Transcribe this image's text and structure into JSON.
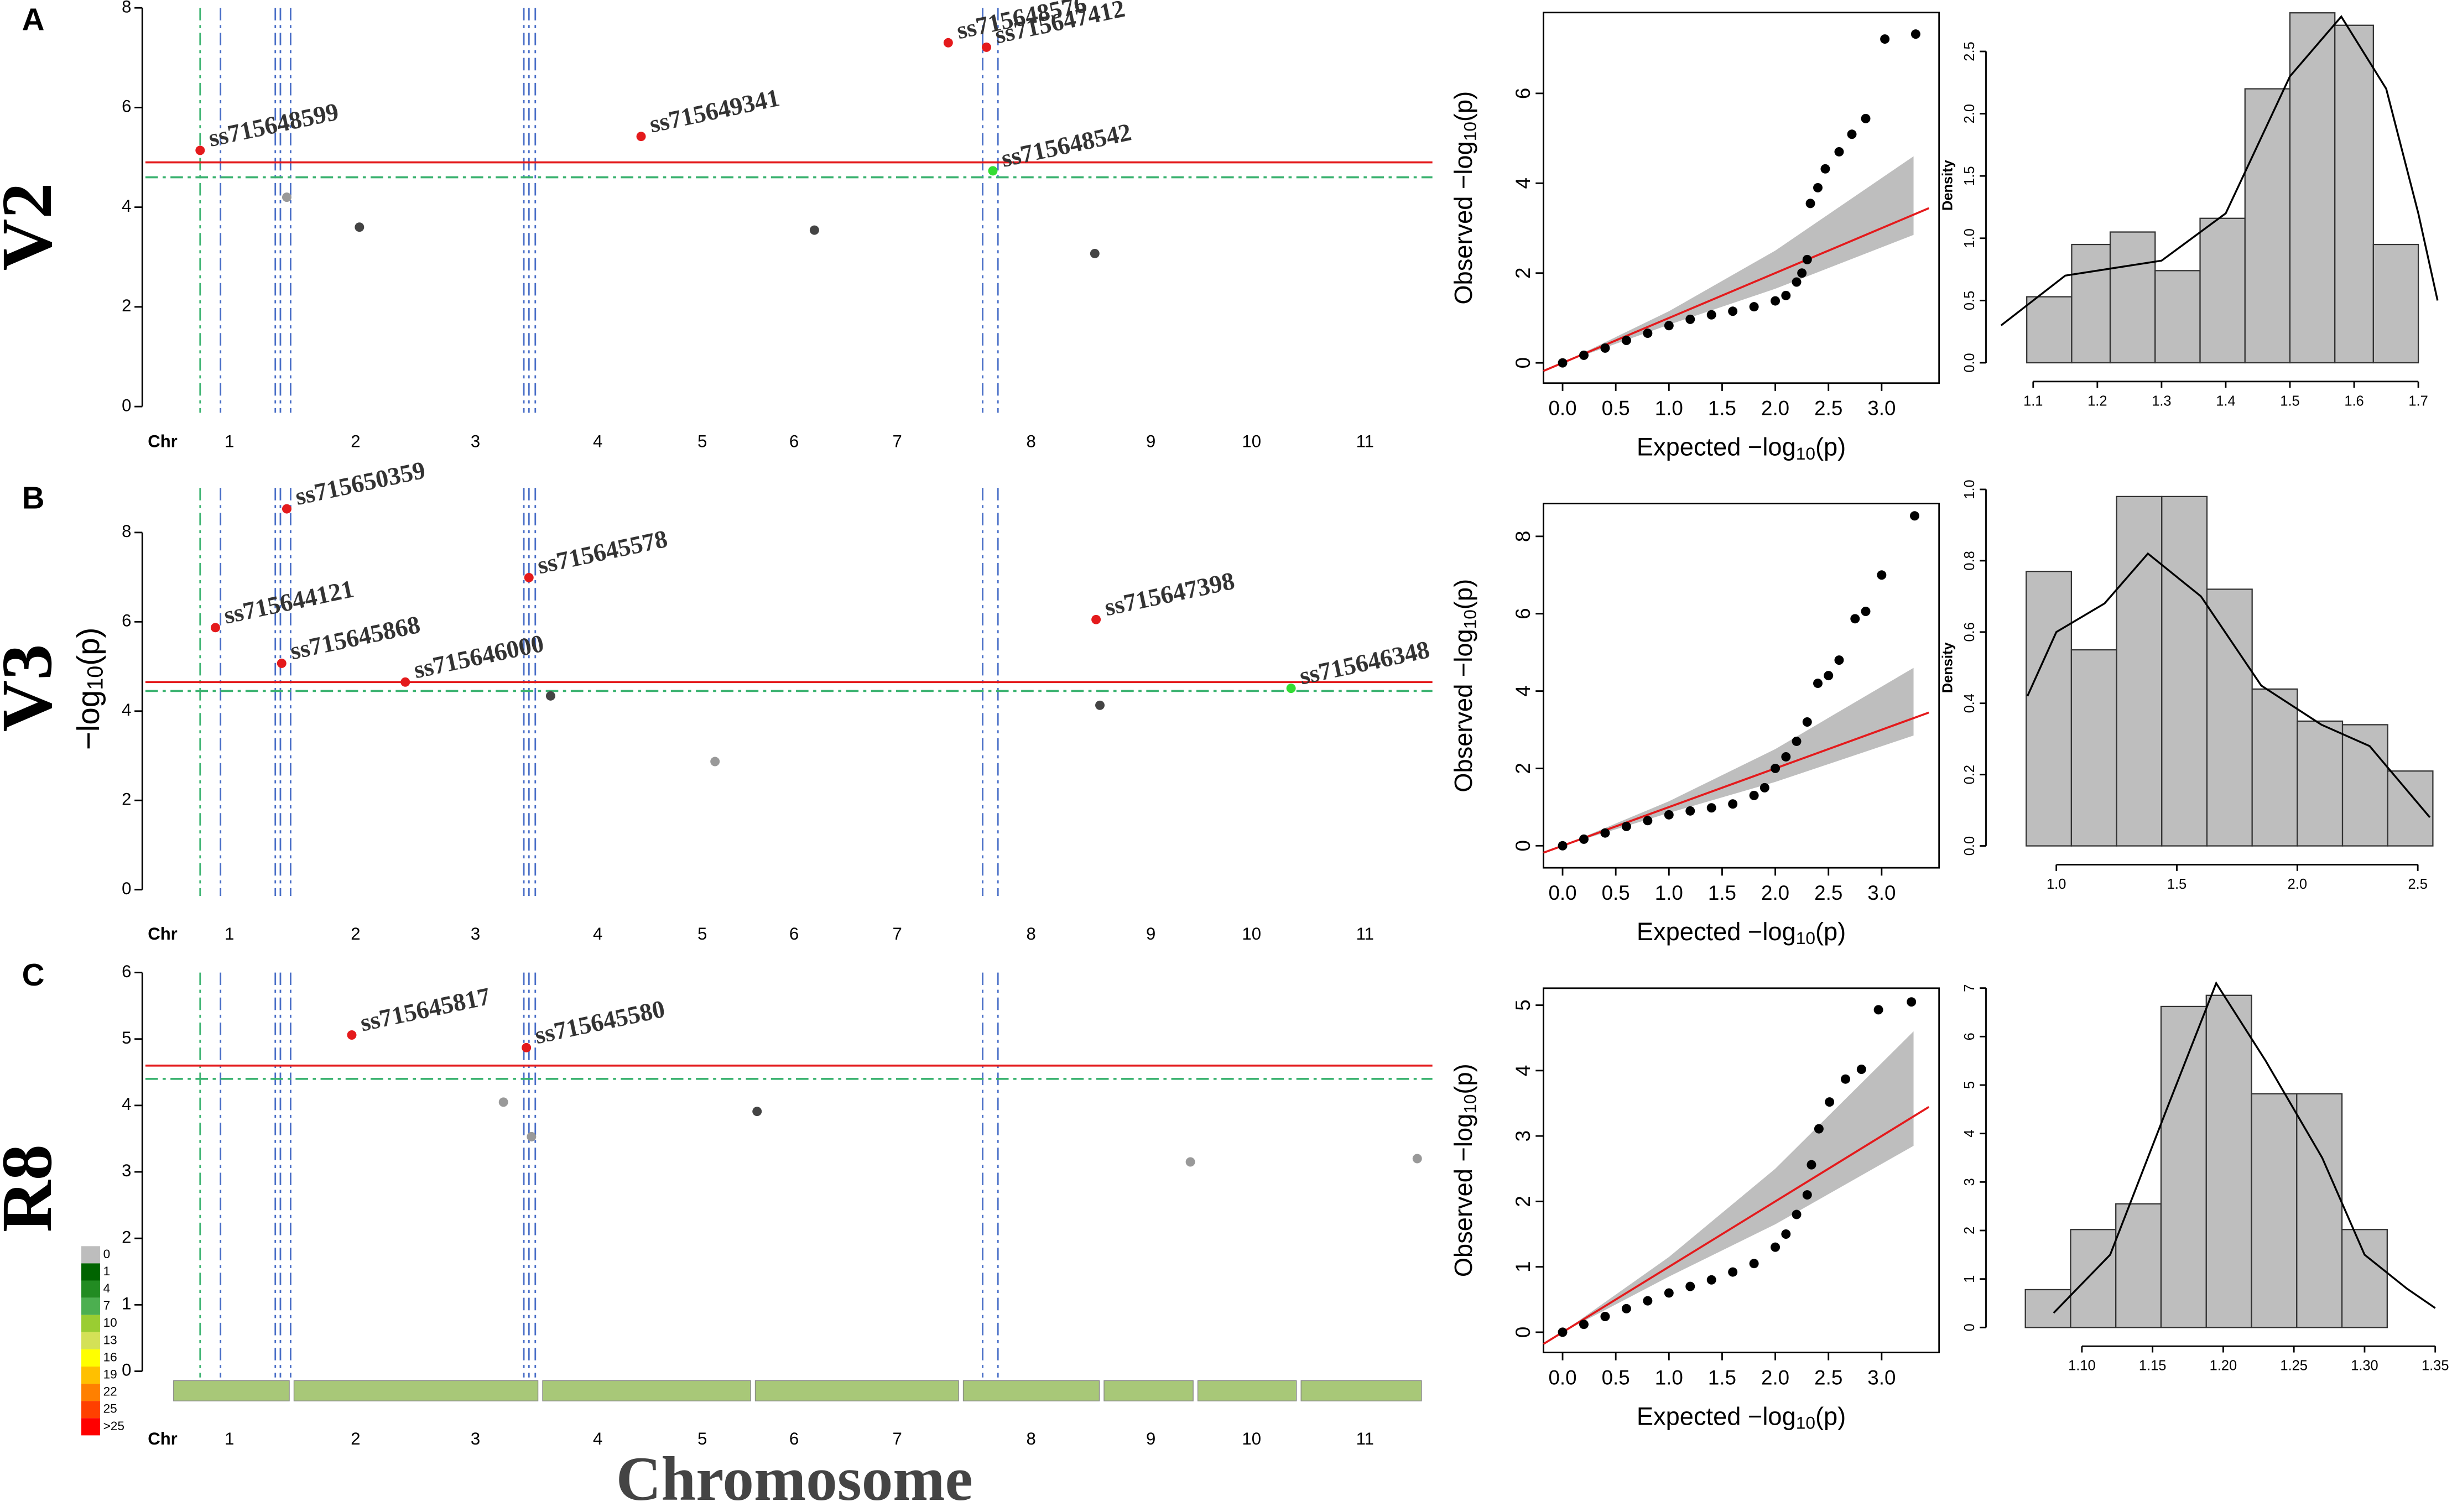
{
  "figure": {
    "panels": [
      {
        "letter": "A",
        "trait": "V2"
      },
      {
        "letter": "B",
        "trait": "V3"
      },
      {
        "letter": "C",
        "trait": "R8"
      }
    ],
    "xlabel": "Chromosome",
    "density_legend": {
      "labels": [
        0,
        1,
        4,
        7,
        10,
        13,
        16,
        19,
        22,
        25,
        ">25"
      ],
      "colors": [
        "#bdbdbd",
        "#006400",
        "#228b22",
        "#4caf50",
        "#9acd32",
        "#d4e157",
        "#ffff00",
        "#ffc000",
        "#ff8000",
        "#ff4000",
        "#ff0000"
      ]
    }
  },
  "chart_data": [
    {
      "type": "manhattan",
      "xlabel_prefix": "Chr",
      "xlim": [
        0,
        100
      ],
      "ylim": [
        0,
        8
      ],
      "yticks": [
        0,
        2,
        4,
        6,
        8
      ],
      "xticks": [
        {
          "value": 6.1,
          "label": "1"
        },
        {
          "value": 16.0,
          "label": "2"
        },
        {
          "value": 25.4,
          "label": "3"
        },
        {
          "value": 35.0,
          "label": "4"
        },
        {
          "value": 43.2,
          "label": "5"
        },
        {
          "value": 50.4,
          "label": "6"
        },
        {
          "value": 58.5,
          "label": "7"
        },
        {
          "value": 69.0,
          "label": "8"
        },
        {
          "value": 78.4,
          "label": "9"
        },
        {
          "value": 86.3,
          "label": "10"
        },
        {
          "value": 95.2,
          "label": "11"
        }
      ],
      "thresholds": [
        {
          "value": 4.9,
          "color": "#e41a1c"
        },
        {
          "value": 4.6,
          "color": "#3cb371"
        }
      ],
      "vlines": {
        "x": [
          3.8,
          5.4,
          9.7,
          10.1,
          10.9,
          29.2,
          29.6,
          30.1,
          65.2,
          66.4
        ],
        "colors": [
          "#3cb371",
          "#4a6fc7",
          "#4a6fc7",
          "#4a6fc7",
          "#4a6fc7",
          "#4a6fc7",
          "#4a6fc7",
          "#4a6fc7",
          "#4a6fc7",
          "#4a6fc7"
        ]
      },
      "points": {
        "x": [
          3.8,
          38.4,
          62.5,
          65.5,
          66.0,
          10.6,
          16.3,
          52.0,
          74.0
        ],
        "y": [
          5.14,
          5.42,
          7.3,
          7.21,
          4.73,
          4.2,
          3.6,
          3.54,
          3.07
        ],
        "labels": [
          "ss715648599",
          "ss715649341",
          "ss715648576",
          "ss715647412",
          "ss715648542",
          null,
          null,
          null,
          null
        ],
        "colors": [
          "#e41a1c",
          "#e41a1c",
          "#e41a1c",
          "#e41a1c",
          "#33dd33",
          "#999999",
          "#444444",
          "#444444",
          "#444444"
        ]
      }
    },
    {
      "type": "qq",
      "xlim": [
        -0.18,
        3.54
      ],
      "ylim": [
        -0.45,
        7.8
      ],
      "xticks": [
        {
          "value": 0,
          "label": "0.0"
        },
        0.5,
        {
          "value": 1,
          "label": "1.0"
        },
        1.5,
        {
          "value": 2,
          "label": "2.0"
        },
        2.5,
        {
          "value": 3,
          "label": "3.0"
        }
      ],
      "yticks": [
        0,
        2,
        4,
        6
      ],
      "xlabel": [
        "Expected  −log",
        "10",
        "(p)"
      ],
      "ylabel": [
        "Observed  −log",
        "10",
        "(p)"
      ],
      "line_color": "#e41a1c",
      "point_color": "#000000",
      "expected": [
        0,
        0.2,
        0.4,
        0.6,
        0.8,
        1.0,
        1.2,
        1.4,
        1.6,
        1.8,
        2.0,
        2.1,
        2.2,
        2.25,
        2.3,
        2.33,
        2.4,
        2.47,
        2.6,
        2.72,
        2.85,
        3.03,
        3.32
      ],
      "observed": [
        0,
        0.17,
        0.33,
        0.5,
        0.66,
        0.83,
        0.97,
        1.07,
        1.15,
        1.25,
        1.38,
        1.5,
        1.8,
        2.0,
        2.3,
        3.55,
        3.9,
        4.32,
        4.7,
        5.09,
        5.44,
        7.21,
        7.32
      ],
      "ci": {
        "x": [
          0,
          1,
          2,
          3.3
        ],
        "upper": [
          0,
          1.15,
          2.5,
          4.6
        ],
        "lower": [
          0,
          0.85,
          1.65,
          2.85
        ],
        "color": "#bebebe"
      }
    },
    {
      "type": "histogram",
      "ylabel": "Density",
      "xlim": [
        1.046,
        1.733
      ],
      "ylim": [
        0,
        2.85
      ],
      "xticks": [
        1.1,
        1.2,
        1.3,
        1.4,
        1.5,
        1.6,
        1.7
      ],
      "yticks": [
        {
          "value": 0,
          "label": "0.0"
        },
        0.5,
        {
          "value": 1,
          "label": "1.0"
        },
        1.5,
        {
          "value": 2,
          "label": "2.0"
        },
        2.5
      ],
      "bins": [
        1.09,
        1.16,
        1.22,
        1.29,
        1.36,
        1.43,
        1.5,
        1.57,
        1.63,
        1.7
      ],
      "values": [
        0.53,
        0.95,
        1.05,
        0.74,
        1.16,
        2.2,
        2.81,
        2.71,
        0.95
      ],
      "color": "#bebebe",
      "density_curve": {
        "x": [
          1.05,
          1.15,
          1.3,
          1.4,
          1.5,
          1.58,
          1.65,
          1.7,
          1.73
        ],
        "y": [
          0.3,
          0.7,
          0.82,
          1.2,
          2.3,
          2.78,
          2.2,
          1.2,
          0.5
        ]
      }
    },
    {
      "type": "manhattan",
      "xlabel_prefix": "Chr",
      "ylabel": [
        "−log",
        "10",
        "(p)"
      ],
      "xlim": [
        0,
        100
      ],
      "ylim": [
        0,
        9
      ],
      "yticks": [
        0,
        2,
        4,
        6,
        8
      ],
      "xticks": [
        {
          "value": 6.1,
          "label": "1"
        },
        {
          "value": 16.0,
          "label": "2"
        },
        {
          "value": 25.4,
          "label": "3"
        },
        {
          "value": 35.0,
          "label": "4"
        },
        {
          "value": 43.2,
          "label": "5"
        },
        {
          "value": 50.4,
          "label": "6"
        },
        {
          "value": 58.5,
          "label": "7"
        },
        {
          "value": 69.0,
          "label": "8"
        },
        {
          "value": 78.4,
          "label": "9"
        },
        {
          "value": 86.3,
          "label": "10"
        },
        {
          "value": 95.2,
          "label": "11"
        }
      ],
      "thresholds": [
        {
          "value": 4.65,
          "color": "#e41a1c"
        },
        {
          "value": 4.45,
          "color": "#3cb371"
        }
      ],
      "vlines": {
        "x": [
          3.8,
          5.4,
          9.7,
          10.1,
          10.9,
          29.2,
          29.6,
          30.1,
          65.2,
          66.4
        ],
        "colors": [
          "#3cb371",
          "#4a6fc7",
          "#4a6fc7",
          "#4a6fc7",
          "#4a6fc7",
          "#4a6fc7",
          "#4a6fc7",
          "#4a6fc7",
          "#4a6fc7",
          "#4a6fc7"
        ]
      },
      "points": {
        "x": [
          10.6,
          5.0,
          10.2,
          19.9,
          29.6,
          74.1,
          89.4,
          31.3,
          74.4,
          44.2
        ],
        "y": [
          8.53,
          5.87,
          5.07,
          4.65,
          6.99,
          6.05,
          4.51,
          4.34,
          4.13,
          2.87
        ],
        "labels": [
          "ss715650359",
          "ss715644121",
          "ss715645868",
          "ss715646000",
          "ss715645578",
          "ss715647398",
          "ss715646348",
          null,
          null,
          null
        ],
        "colors": [
          "#e41a1c",
          "#e41a1c",
          "#e41a1c",
          "#e41a1c",
          "#e41a1c",
          "#e41a1c",
          "#33dd33",
          "#444444",
          "#444444",
          "#999999"
        ]
      }
    },
    {
      "type": "qq",
      "xlim": [
        -0.18,
        3.54
      ],
      "ylim": [
        -0.57,
        8.85
      ],
      "xticks": [
        {
          "value": 0,
          "label": "0.0"
        },
        0.5,
        {
          "value": 1,
          "label": "1.0"
        },
        1.5,
        {
          "value": 2,
          "label": "2.0"
        },
        2.5,
        {
          "value": 3,
          "label": "3.0"
        }
      ],
      "yticks": [
        0,
        2,
        4,
        6,
        8
      ],
      "xlabel": [
        "Expected  −log",
        "10",
        "(p)"
      ],
      "ylabel": [
        "Observed  −log",
        "10",
        "(p)"
      ],
      "line_color": "#e41a1c",
      "point_color": "#000000",
      "expected": [
        0,
        0.2,
        0.4,
        0.6,
        0.8,
        1.0,
        1.2,
        1.4,
        1.6,
        1.8,
        1.9,
        2.0,
        2.1,
        2.2,
        2.3,
        2.4,
        2.5,
        2.6,
        2.75,
        2.85,
        3.0,
        3.31
      ],
      "observed": [
        0,
        0.17,
        0.33,
        0.5,
        0.65,
        0.8,
        0.9,
        0.98,
        1.08,
        1.3,
        1.5,
        2.0,
        2.3,
        2.7,
        3.2,
        4.2,
        4.4,
        4.8,
        5.87,
        6.06,
        7.0,
        8.53
      ],
      "ci": {
        "x": [
          0,
          1,
          2,
          3.3
        ],
        "upper": [
          0,
          1.15,
          2.5,
          4.6
        ],
        "lower": [
          0,
          0.85,
          1.65,
          2.85
        ],
        "color": "#bebebe"
      }
    },
    {
      "type": "histogram",
      "ylabel": "Density",
      "xlim": [
        0.76,
        2.59
      ],
      "ylim": [
        0,
        1.0
      ],
      "xticks": [
        {
          "value": 1,
          "label": "1.0"
        },
        1.5,
        {
          "value": 2,
          "label": "2.0"
        },
        2.5
      ],
      "yticks": [
        {
          "value": 0,
          "label": "0.0"
        },
        0.2,
        0.4,
        0.6,
        0.8,
        {
          "value": 1,
          "label": "1.0"
        }
      ],
      "bins": [
        0.875,
        1.0625,
        1.25,
        1.4375,
        1.625,
        1.8125,
        2.0,
        2.1875,
        2.375,
        2.5625
      ],
      "values": [
        0.77,
        0.55,
        0.98,
        0.98,
        0.72,
        0.44,
        0.35,
        0.34,
        0.21
      ],
      "color": "#bebebe",
      "density_curve": {
        "x": [
          0.88,
          1.0,
          1.2,
          1.38,
          1.6,
          1.85,
          2.1,
          2.3,
          2.55
        ],
        "y": [
          0.42,
          0.6,
          0.68,
          0.82,
          0.7,
          0.45,
          0.34,
          0.28,
          0.08
        ]
      }
    },
    {
      "type": "manhattan",
      "xlabel_prefix": "Chr",
      "density_bar": true,
      "xlim": [
        0,
        100
      ],
      "ylim": [
        0,
        6
      ],
      "yticks": [
        0,
        1,
        2,
        3,
        4,
        5,
        6
      ],
      "xticks": [
        {
          "value": 6.1,
          "label": "1"
        },
        {
          "value": 16.0,
          "label": "2"
        },
        {
          "value": 25.4,
          "label": "3"
        },
        {
          "value": 35.0,
          "label": "4"
        },
        {
          "value": 43.2,
          "label": "5"
        },
        {
          "value": 50.4,
          "label": "6"
        },
        {
          "value": 58.5,
          "label": "7"
        },
        {
          "value": 69.0,
          "label": "8"
        },
        {
          "value": 78.4,
          "label": "9"
        },
        {
          "value": 86.3,
          "label": "10"
        },
        {
          "value": 95.2,
          "label": "11"
        }
      ],
      "thresholds": [
        {
          "value": 4.6,
          "color": "#e41a1c"
        },
        {
          "value": 4.4,
          "color": "#3cb371"
        }
      ],
      "vlines": {
        "x": [
          3.8,
          5.4,
          9.7,
          10.1,
          10.9,
          29.2,
          29.6,
          30.1,
          65.2,
          66.4
        ],
        "colors": [
          "#3cb371",
          "#4a6fc7",
          "#4a6fc7",
          "#4a6fc7",
          "#4a6fc7",
          "#4a6fc7",
          "#4a6fc7",
          "#4a6fc7",
          "#4a6fc7",
          "#4a6fc7"
        ]
      },
      "points": {
        "x": [
          15.7,
          29.4,
          27.6,
          47.5,
          29.8,
          99.3,
          81.5
        ],
        "y": [
          5.06,
          4.87,
          4.05,
          3.91,
          3.53,
          3.2,
          3.15
        ],
        "labels": [
          "ss715645817",
          "ss715645580",
          null,
          null,
          null,
          null,
          null
        ],
        "colors": [
          "#e41a1c",
          "#e41a1c",
          "#999999",
          "#444444",
          "#999999",
          "#999999",
          "#999999"
        ]
      }
    },
    {
      "type": "qq",
      "xlim": [
        -0.18,
        3.54
      ],
      "ylim": [
        -0.31,
        5.26
      ],
      "xticks": [
        {
          "value": 0,
          "label": "0.0"
        },
        0.5,
        {
          "value": 1,
          "label": "1.0"
        },
        1.5,
        {
          "value": 2,
          "label": "2.0"
        },
        2.5,
        {
          "value": 3,
          "label": "3.0"
        }
      ],
      "yticks": [
        0,
        1,
        2,
        3,
        4,
        5
      ],
      "xlabel": [
        "Expected  −log",
        "10",
        "(p)"
      ],
      "ylabel": [
        "Observed  −log",
        "10",
        "(p)"
      ],
      "line_color": "#e41a1c",
      "point_color": "#000000",
      "expected": [
        0,
        0.2,
        0.4,
        0.6,
        0.8,
        1.0,
        1.2,
        1.4,
        1.6,
        1.8,
        2.0,
        2.1,
        2.2,
        2.3,
        2.34,
        2.41,
        2.51,
        2.66,
        2.81,
        2.97,
        3.28
      ],
      "observed": [
        0,
        0.12,
        0.24,
        0.36,
        0.48,
        0.6,
        0.7,
        0.8,
        0.92,
        1.05,
        1.3,
        1.5,
        1.8,
        2.1,
        2.56,
        3.11,
        3.52,
        3.87,
        4.02,
        4.93,
        5.05
      ],
      "ci": {
        "x": [
          0,
          1,
          2,
          3.3
        ],
        "upper": [
          0,
          1.15,
          2.5,
          4.6
        ],
        "lower": [
          0,
          0.85,
          1.65,
          2.85
        ],
        "color": "#bebebe"
      }
    },
    {
      "type": "histogram",
      "xlim": [
        1.041,
        1.353
      ],
      "ylim": [
        0,
        7.32
      ],
      "xticks": [
        {
          "value": 1.1,
          "label": "1.10"
        },
        {
          "value": 1.15,
          "label": "1.15"
        },
        {
          "value": 1.2,
          "label": "1.20"
        },
        {
          "value": 1.25,
          "label": "1.25"
        },
        {
          "value": 1.3,
          "label": "1.30"
        },
        {
          "value": 1.35,
          "label": "1.35"
        }
      ],
      "yticks": [
        0,
        1,
        2,
        3,
        4,
        5,
        6,
        7
      ],
      "bins": [
        1.06,
        1.092,
        1.124,
        1.156,
        1.188,
        1.22,
        1.252,
        1.284,
        1.316
      ],
      "values": [
        0.78,
        2.02,
        2.55,
        6.62,
        6.85,
        4.82,
        4.82,
        2.02
      ],
      "color": "#bebebe",
      "density_curve": {
        "x": [
          1.08,
          1.12,
          1.16,
          1.195,
          1.23,
          1.27,
          1.3,
          1.33,
          1.35
        ],
        "y": [
          0.3,
          1.5,
          4.5,
          7.1,
          5.5,
          3.5,
          1.5,
          0.8,
          0.4
        ]
      }
    }
  ]
}
